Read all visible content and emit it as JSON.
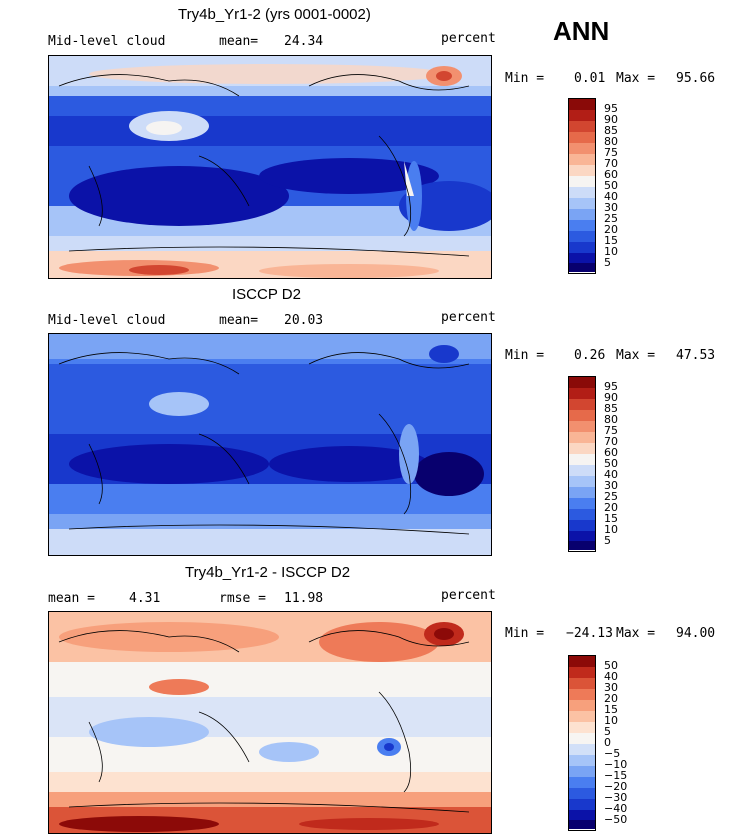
{
  "season": "ANN",
  "colors": {
    "abs_scale": [
      "#08006e",
      "#0b12a8",
      "#1838cc",
      "#2c5ae0",
      "#4a7ef0",
      "#7aa4f4",
      "#a6c4f8",
      "#cddcf8",
      "#f6f4f2",
      "#fbd7c3",
      "#f9b596",
      "#f2906f",
      "#e66a4a",
      "#d24630",
      "#b21e16",
      "#8a0a08"
    ],
    "diff_scale": [
      "#08006e",
      "#0b12a8",
      "#1838cc",
      "#2c5ae0",
      "#4a7ef0",
      "#7aa4f4",
      "#a6c4f8",
      "#d2e0f8",
      "#f7f5f2",
      "#fde2d0",
      "#fbc2a4",
      "#f7a07c",
      "#ee7a58",
      "#db5438",
      "#c02a1c",
      "#8c0a08"
    ]
  },
  "chart_data": [
    {
      "type": "heatmap",
      "title": "Try4b_Yr1-2 (yrs 0001-0002)",
      "variable": "Mid-level cloud",
      "mean_label": "mean=",
      "mean": "24.34",
      "units": "percent",
      "min_label": "Min =",
      "min": "0.01",
      "max_label": "Max =",
      "max": "95.66",
      "colorbar_levels": [
        "95",
        "90",
        "85",
        "80",
        "75",
        "70",
        "60",
        "50",
        "40",
        "30",
        "25",
        "20",
        "15",
        "10",
        "5"
      ]
    },
    {
      "type": "heatmap",
      "title": "ISCCP D2",
      "variable": "Mid-level cloud",
      "mean_label": "mean=",
      "mean": "20.03",
      "units": "percent",
      "min_label": "Min =",
      "min": "0.26",
      "max_label": "Max =",
      "max": "47.53",
      "colorbar_levels": [
        "95",
        "90",
        "85",
        "80",
        "75",
        "70",
        "60",
        "50",
        "40",
        "30",
        "25",
        "20",
        "15",
        "10",
        "5"
      ]
    },
    {
      "type": "heatmap",
      "title": "Try4b_Yr1-2 - ISCCP D2",
      "mean_label": "mean =",
      "mean": "4.31",
      "rmse_label": "rmse =",
      "rmse": "11.98",
      "units": "percent",
      "min_label": "Min =",
      "min": "−24.13",
      "max_label": "Max =",
      "max": "94.00",
      "colorbar_levels": [
        "50",
        "40",
        "30",
        "20",
        "15",
        "10",
        "5",
        "0",
        "−5",
        "−10",
        "−15",
        "−20",
        "−30",
        "−40",
        "−50"
      ]
    }
  ]
}
